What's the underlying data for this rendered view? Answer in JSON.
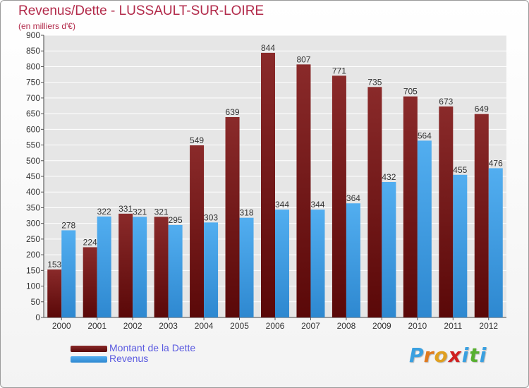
{
  "chart_data": {
    "type": "bar",
    "title": "Revenus/Dette - LUSSAULT-SUR-LOIRE",
    "subtitle": "(en milliers d'€)",
    "categories": [
      "2000",
      "2001",
      "2002",
      "2003",
      "2004",
      "2005",
      "2006",
      "2007",
      "2008",
      "2009",
      "2010",
      "2011",
      "2012"
    ],
    "series": [
      {
        "name": "Montant de la Dette",
        "color": "#7a1414",
        "values": [
          153,
          224,
          331,
          321,
          549,
          639,
          844,
          807,
          771,
          735,
          705,
          673,
          649
        ]
      },
      {
        "name": "Revenus",
        "color": "#3e9be0",
        "values": [
          278,
          322,
          321,
          295,
          303,
          318,
          344,
          344,
          364,
          432,
          564,
          455,
          476
        ]
      }
    ],
    "ylim": [
      0,
      900
    ],
    "yticks": [
      0,
      50,
      100,
      150,
      200,
      250,
      300,
      350,
      400,
      450,
      500,
      550,
      600,
      650,
      700,
      750,
      800,
      850,
      900
    ],
    "grid": true,
    "legend_position": "bottom-left"
  },
  "brand": {
    "letters": [
      "P",
      "r",
      "o",
      "x",
      "i",
      "t",
      "i"
    ],
    "colors": [
      "#3aa0e0",
      "#e07a1e",
      "#e0a020",
      "#d02020",
      "#3aa0e0",
      "#58b030",
      "#3aa0e0"
    ]
  }
}
